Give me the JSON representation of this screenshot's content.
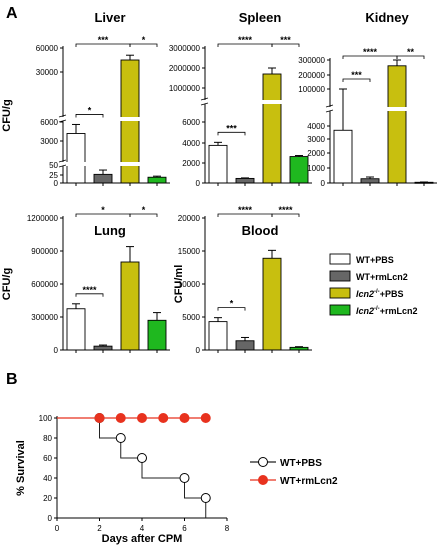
{
  "panels": {
    "a": "A",
    "b": "B"
  },
  "colors": {
    "wt_pbs": "#ffffff",
    "wt_rmlcn2": "#666666",
    "lcn2_pbs": "#c8bf0f",
    "lcn2_rmlcn2": "#1fb81f",
    "survival_red": "#e8321e"
  },
  "legend": {
    "items": [
      {
        "prefix": "WT",
        "sup": "",
        "rest": "+PBS",
        "color": "#ffffff"
      },
      {
        "prefix": "WT",
        "sup": "",
        "rest": "+rmLcn2",
        "color": "#666666"
      },
      {
        "prefix": "lcn2",
        "sup": "-/-",
        "rest": "+PBS",
        "color": "#c8bf0f"
      },
      {
        "prefix": "lcn2",
        "sup": "-/-",
        "rest": "+rmLcn2",
        "color": "#1fb81f"
      }
    ]
  },
  "chart_data": [
    {
      "type": "bar",
      "title": "Liver",
      "ylabel": "CFU/g",
      "broken_axis": true,
      "ticks": [
        "0",
        "25",
        "50",
        "3000",
        "6000",
        "30000",
        "60000"
      ],
      "categories": [
        "WT+PBS",
        "WT+rmLcn2",
        "lcn2-/-+PBS",
        "lcn2-/-+rmLcn2"
      ],
      "values": [
        4600,
        24,
        45000,
        16
      ],
      "errors": [
        1100,
        12,
        6000,
        3
      ],
      "significance": [
        {
          "pair": [
            1,
            2
          ],
          "label": "*"
        },
        {
          "pair": [
            1,
            3
          ],
          "label": "***"
        },
        {
          "pair": [
            3,
            4
          ],
          "label": "*"
        }
      ]
    },
    {
      "type": "bar",
      "title": "Spleen",
      "ylabel": "",
      "broken_axis": true,
      "ticks": [
        "0",
        "2000",
        "4000",
        "6000",
        "1000000",
        "2000000",
        "3000000"
      ],
      "categories": [
        "WT+PBS",
        "WT+rmLcn2",
        "lcn2-/-+PBS",
        "lcn2-/-+rmLcn2"
      ],
      "values": [
        3700,
        450,
        1700000,
        2600
      ],
      "errors": [
        300,
        50,
        300000,
        100
      ],
      "significance": [
        {
          "pair": [
            1,
            2
          ],
          "label": "***"
        },
        {
          "pair": [
            1,
            3
          ],
          "label": "****"
        },
        {
          "pair": [
            3,
            4
          ],
          "label": "***"
        }
      ]
    },
    {
      "type": "bar",
      "title": "Kidney",
      "ylabel": "",
      "broken_axis": true,
      "ticks": [
        "0",
        "1000",
        "2000",
        "3000",
        "4000",
        "100000",
        "200000",
        "300000"
      ],
      "categories": [
        "WT+PBS",
        "WT+rmLcn2",
        "lcn2-/-+PBS",
        "lcn2-/-+rmLcn2"
      ],
      "values": [
        3700,
        300,
        260000,
        50
      ],
      "errors": [
        450,
        120,
        45000,
        20
      ],
      "significance": [
        {
          "pair": [
            1,
            2
          ],
          "label": "***"
        },
        {
          "pair": [
            1,
            3
          ],
          "label": "****"
        },
        {
          "pair": [
            3,
            4
          ],
          "label": "**"
        }
      ]
    },
    {
      "type": "bar",
      "title": "Lung",
      "ylabel": "CFU/g",
      "broken_axis": false,
      "ylim": [
        0,
        1200000
      ],
      "ticks": [
        "0",
        "300000",
        "600000",
        "900000",
        "1200000"
      ],
      "categories": [
        "WT+PBS",
        "WT+rmLcn2",
        "lcn2-/-+PBS",
        "lcn2-/-+rmLcn2"
      ],
      "values": [
        375000,
        35000,
        800000,
        270000
      ],
      "errors": [
        45000,
        10000,
        140000,
        70000
      ],
      "significance": [
        {
          "pair": [
            1,
            2
          ],
          "label": "****"
        },
        {
          "pair": [
            1,
            3
          ],
          "label": "*"
        },
        {
          "pair": [
            3,
            4
          ],
          "label": "*"
        }
      ]
    },
    {
      "type": "bar",
      "title": "Blood",
      "ylabel": "CFU/ml",
      "broken_axis": false,
      "ylim": [
        0,
        20000
      ],
      "ticks": [
        "0",
        "5000",
        "10000",
        "15000",
        "20000"
      ],
      "categories": [
        "WT+PBS",
        "WT+rmLcn2",
        "lcn2-/-+PBS",
        "lcn2-/-+rmLcn2"
      ],
      "values": [
        4300,
        1400,
        13900,
        400
      ],
      "errors": [
        600,
        500,
        1200,
        100
      ],
      "significance": [
        {
          "pair": [
            1,
            2
          ],
          "label": "*"
        },
        {
          "pair": [
            1,
            3
          ],
          "label": "****"
        },
        {
          "pair": [
            3,
            4
          ],
          "label": "****"
        }
      ]
    },
    {
      "type": "line",
      "title": "",
      "xlabel": "Days after CPM",
      "ylabel": "% Survival",
      "xlim": [
        0,
        8
      ],
      "ylim": [
        0,
        100
      ],
      "xticks": [
        "0",
        "2",
        "4",
        "6",
        "8"
      ],
      "yticks": [
        "0",
        "20",
        "40",
        "60",
        "80",
        "100"
      ],
      "series": [
        {
          "name": "WT+PBS",
          "kind": "step",
          "color": "#222222",
          "x": [
            0,
            2,
            3,
            4,
            6,
            7
          ],
          "y": [
            100,
            80,
            60,
            40,
            20,
            0
          ],
          "markers_x": [
            2,
            3,
            4,
            6,
            7
          ]
        },
        {
          "name": "WT+rmLcn2",
          "kind": "flat",
          "color": "#e8321e",
          "x": [
            0,
            7
          ],
          "y": [
            100,
            100
          ],
          "markers_x": [
            2,
            3,
            4,
            5,
            6,
            7
          ]
        }
      ]
    }
  ]
}
